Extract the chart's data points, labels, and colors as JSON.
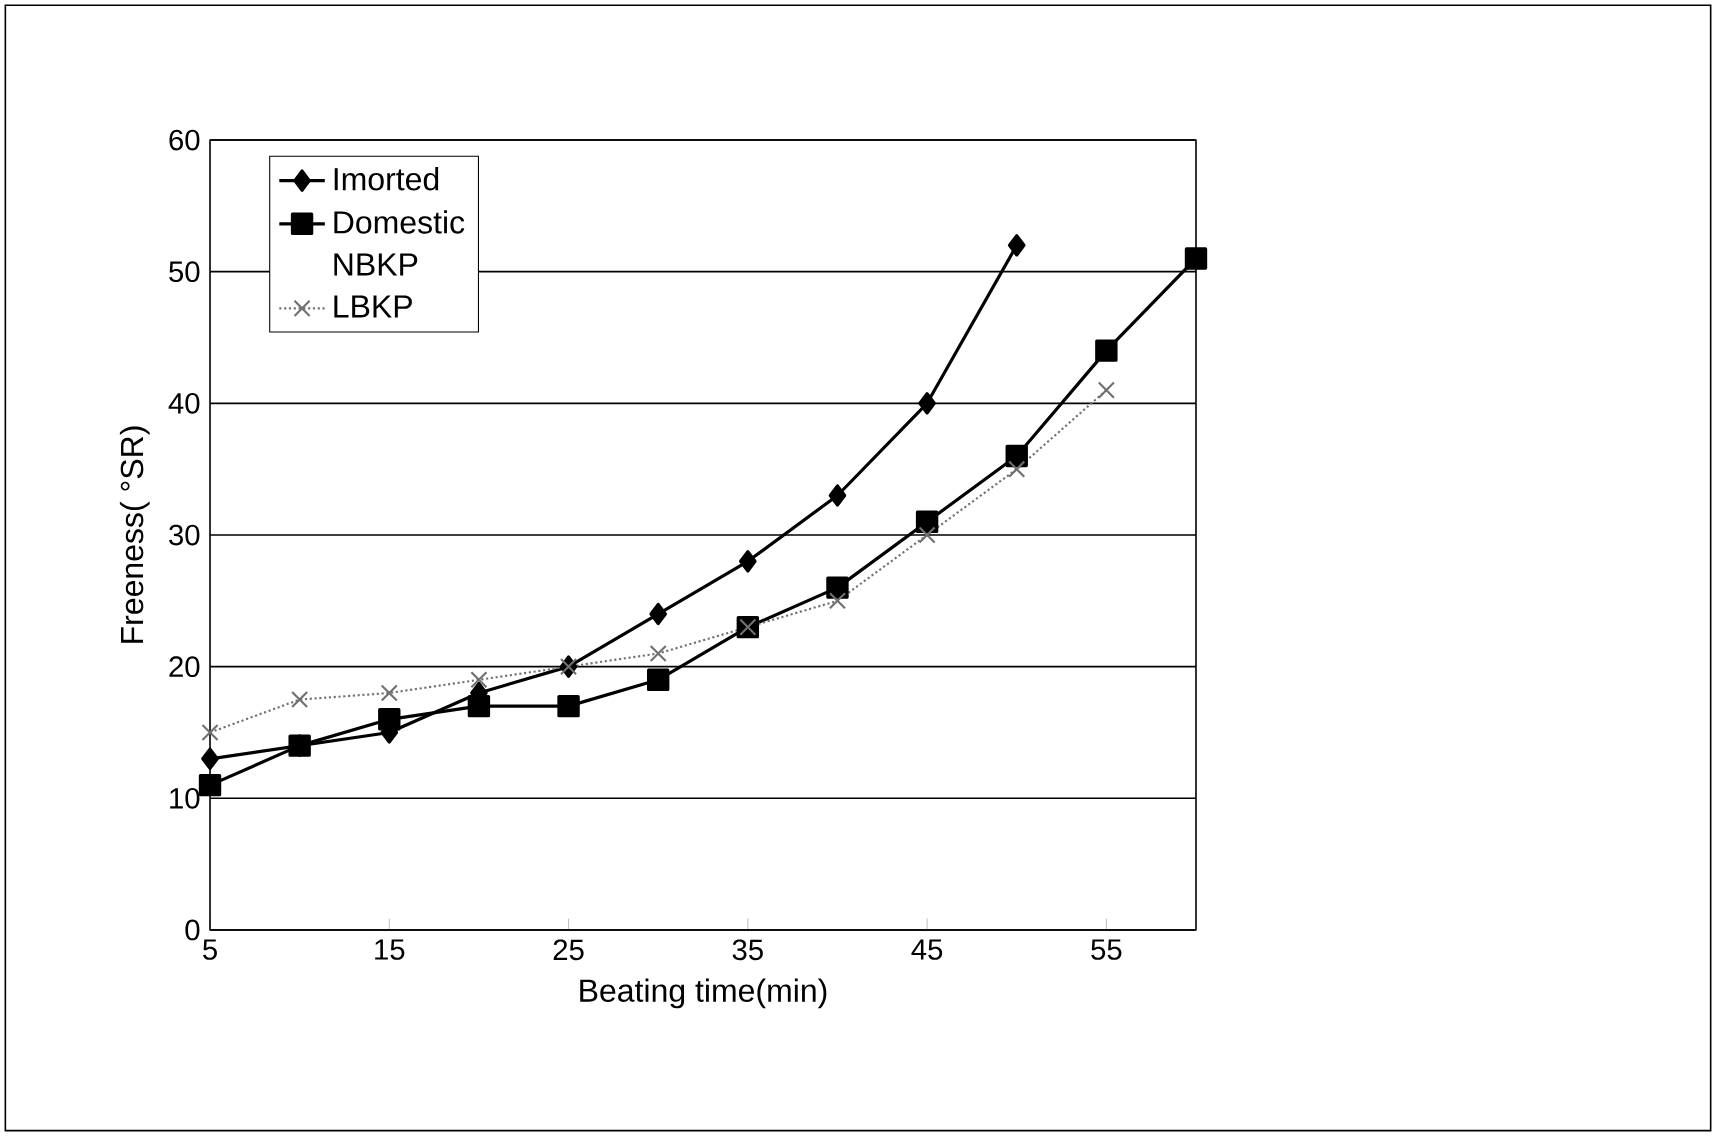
{
  "chart_data": {
    "type": "line",
    "xlabel": "Beating time(min)",
    "ylabel": "Freeness( °SR)",
    "x": [
      5,
      10,
      15,
      20,
      25,
      30,
      35,
      40,
      45,
      50,
      55,
      60
    ],
    "xlim": [
      5,
      60
    ],
    "xticks": [
      5,
      15,
      25,
      35,
      45,
      55
    ],
    "ylim": [
      0,
      60
    ],
    "yticks": [
      0,
      10,
      20,
      30,
      40,
      50,
      60
    ],
    "grid": "y",
    "legend": "top left",
    "series": [
      {
        "name": "Imorted",
        "color": "#000000",
        "marker": "diamond",
        "line_style": "solid",
        "values": [
          13,
          14,
          15,
          18,
          20,
          24,
          28,
          33,
          40,
          52,
          null,
          null
        ]
      },
      {
        "name": "Domestic",
        "color": "#000000",
        "marker": "square",
        "line_style": "solid",
        "values": [
          11,
          14,
          16,
          17,
          17,
          19,
          23,
          26,
          31,
          36,
          44,
          51
        ]
      },
      {
        "name": "NBKP",
        "marker": "none",
        "values": [
          null,
          null,
          null,
          null,
          null,
          null,
          null,
          null,
          null,
          null,
          null,
          null
        ]
      },
      {
        "name": "LBKP",
        "color": "#707070",
        "marker": "cross",
        "line_style": "dotted",
        "values": [
          15,
          17.5,
          18,
          19,
          20,
          21,
          23,
          25,
          30,
          35,
          41,
          null
        ]
      }
    ]
  }
}
